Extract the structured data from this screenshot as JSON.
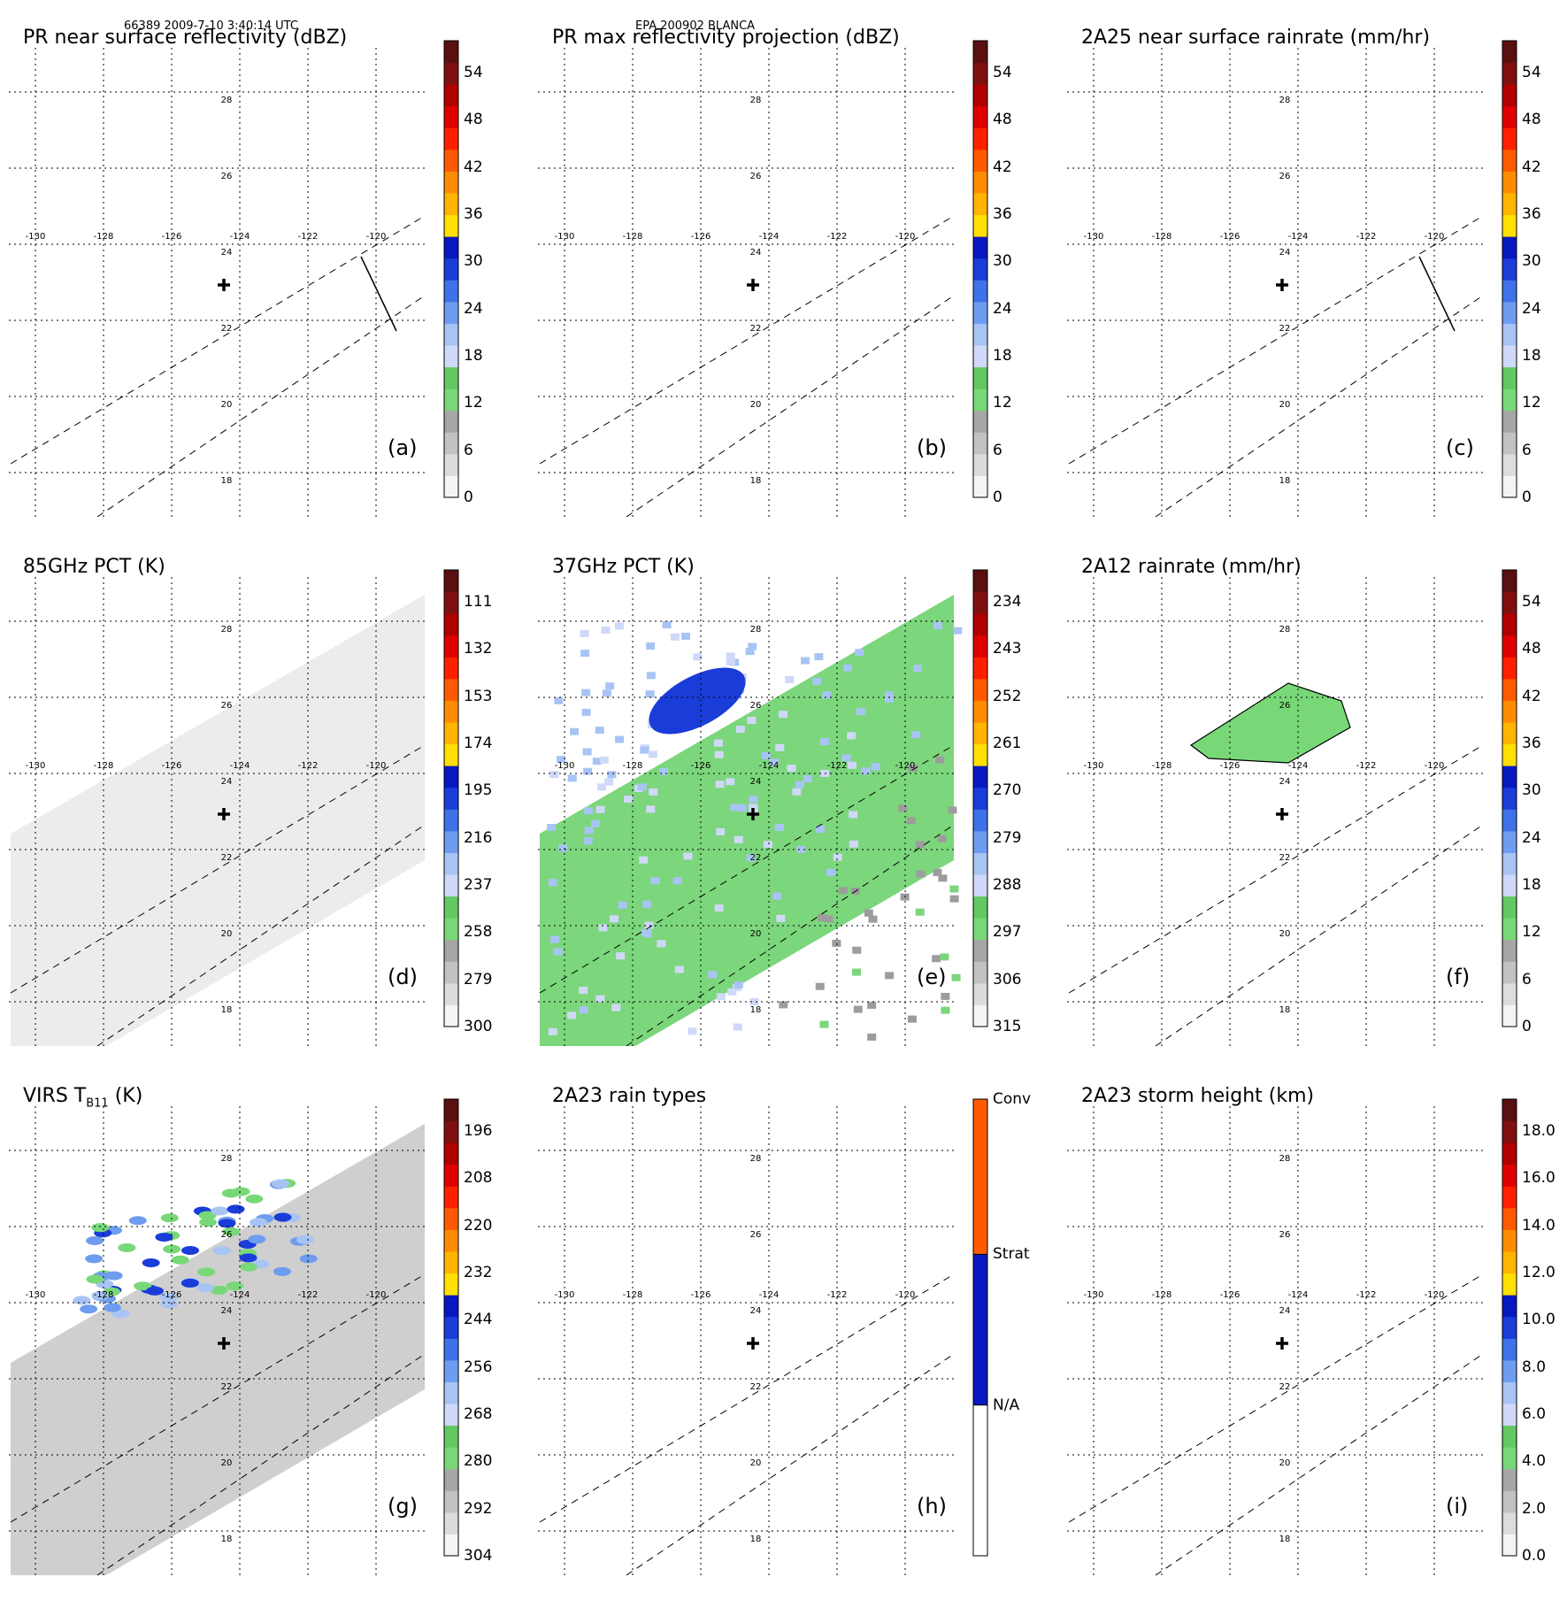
{
  "header": {
    "orbit_info": "66389 2009-7-10 3:40:14 UTC",
    "storm_info": "EPA 200902 BLANCA"
  },
  "axes": {
    "lon_ticks": [
      "-130",
      "-128",
      "-126",
      "-124",
      "-122",
      "-120"
    ],
    "lat_ticks": [
      "28",
      "26",
      "24",
      "22",
      "20",
      "18"
    ]
  },
  "colorbar_palette": [
    "#f4f4f4",
    "#dcdcdc",
    "#c2c2c2",
    "#a6a6a6",
    "#78d878",
    "#62c862",
    "#cfd8f8",
    "#a8c4f4",
    "#6e9cf0",
    "#3e72e8",
    "#1a3cd8",
    "#0818c0",
    "#ffe000",
    "#ffb400",
    "#ff8c00",
    "#ff5a00",
    "#ff2000",
    "#e00000",
    "#b00000",
    "#801010",
    "#5a1010"
  ],
  "panels": [
    {
      "id": "a",
      "title": "PR near surface reflectivity (dBZ)",
      "label": "(a)",
      "colorbar": [
        "54",
        "48",
        "42",
        "36",
        "30",
        "24",
        "18",
        "12",
        "6",
        "0"
      ]
    },
    {
      "id": "b",
      "title": "PR max reflectivity projection (dBZ)",
      "label": "(b)",
      "colorbar": [
        "54",
        "48",
        "42",
        "36",
        "30",
        "24",
        "18",
        "12",
        "6",
        "0"
      ]
    },
    {
      "id": "c",
      "title": "2A25 near surface rainrate (mm/hr)",
      "label": "(c)",
      "colorbar": [
        "54",
        "48",
        "42",
        "36",
        "30",
        "24",
        "18",
        "12",
        "6",
        "0"
      ]
    },
    {
      "id": "d",
      "title": "85GHz PCT (K)",
      "label": "(d)",
      "colorbar": [
        "111",
        "132",
        "153",
        "174",
        "195",
        "216",
        "237",
        "258",
        "279",
        "300"
      ]
    },
    {
      "id": "e",
      "title": "37GHz PCT (K)",
      "label": "(e)",
      "colorbar": [
        "234",
        "243",
        "252",
        "261",
        "270",
        "279",
        "288",
        "297",
        "306",
        "315"
      ]
    },
    {
      "id": "f",
      "title": "2A12 rainrate (mm/hr)",
      "label": "(f)",
      "colorbar": [
        "54",
        "48",
        "42",
        "36",
        "30",
        "24",
        "18",
        "12",
        "6",
        "0"
      ]
    },
    {
      "id": "g",
      "title": "VIRS T",
      "title_sub": "B11",
      "title_end": " (K)",
      "label": "(g)",
      "colorbar": [
        "196",
        "208",
        "220",
        "232",
        "244",
        "256",
        "268",
        "280",
        "292",
        "304"
      ]
    },
    {
      "id": "h",
      "title": "2A23 rain types",
      "label": "(h)",
      "colorbar": [
        "Conv",
        "Strat",
        "N/A"
      ]
    },
    {
      "id": "i",
      "title": "2A23 storm height (km)",
      "label": "(i)",
      "colorbar": [
        "18.0",
        "16.0",
        "14.0",
        "12.0",
        "10.0",
        "8.0",
        "6.0",
        "4.0",
        "2.0",
        "0.0"
      ]
    }
  ]
}
